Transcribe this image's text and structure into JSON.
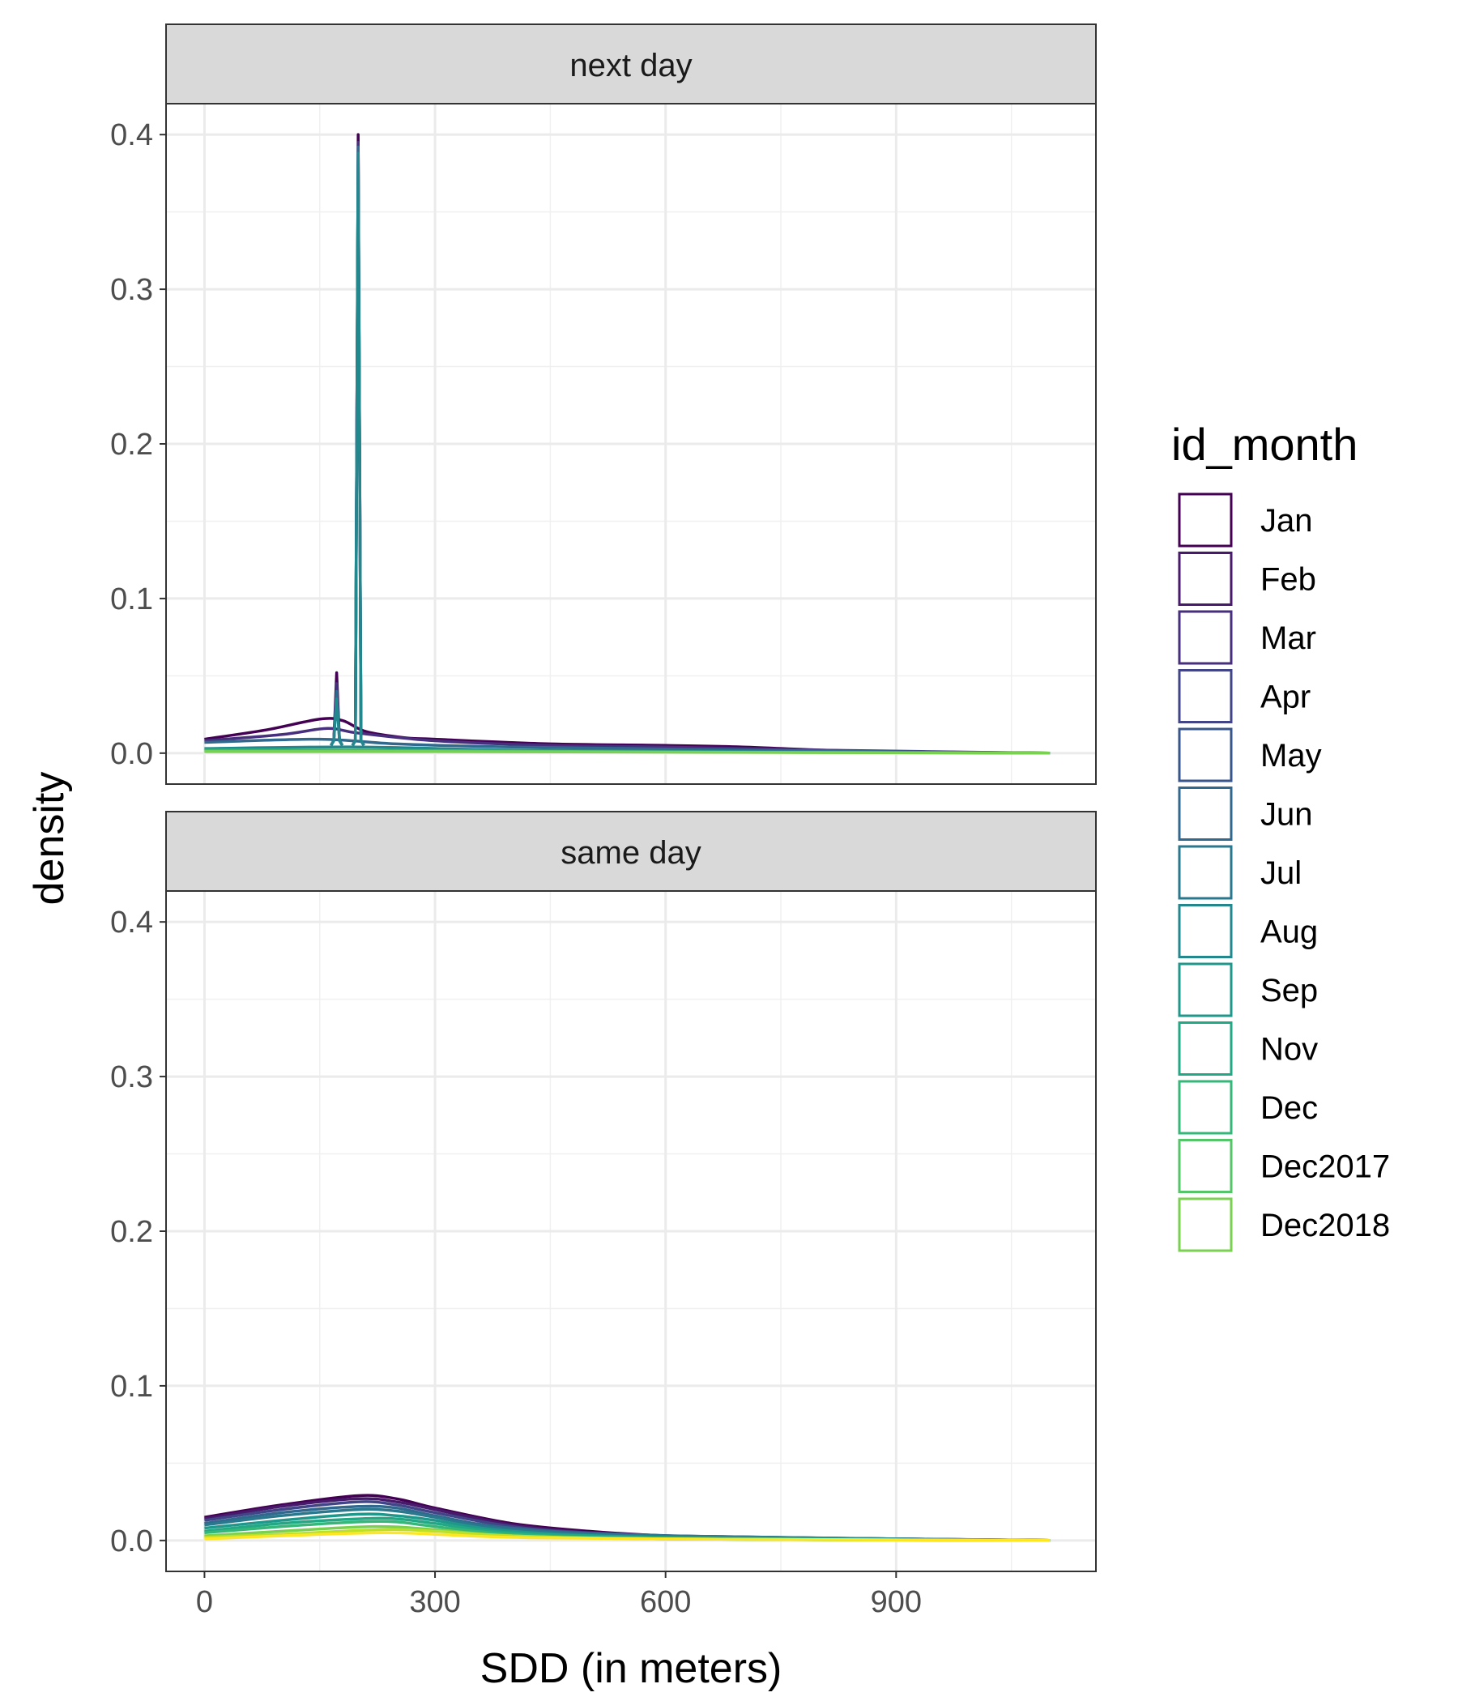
{
  "chart_data": {
    "type": "line",
    "xlabel": "SDD (in meters)",
    "ylabel": "density",
    "xlim": [
      -50,
      1160
    ],
    "ylim": [
      -0.02,
      0.42
    ],
    "x_ticks": [
      0,
      300,
      600,
      900
    ],
    "x_tick_labels": [
      "0",
      "300",
      "600",
      "900"
    ],
    "y_ticks": [
      0.0,
      0.1,
      0.2,
      0.3,
      0.4
    ],
    "y_tick_labels": [
      "0.0",
      "0.1",
      "0.2",
      "0.3",
      "0.4"
    ],
    "grid": true,
    "legend": {
      "title": "id_month",
      "position": "right",
      "entries": [
        "Jan",
        "Feb",
        "Mar",
        "Apr",
        "May",
        "Jun",
        "Jul",
        "Aug",
        "Sep",
        "Nov",
        "Dec",
        "Dec2017",
        "Dec2018"
      ],
      "colors": [
        "#440154",
        "#481a6c",
        "#472f7d",
        "#414487",
        "#39568c",
        "#31688e",
        "#2a788e",
        "#23888e",
        "#1f988b",
        "#22a884",
        "#35b779",
        "#54c568",
        "#7ad151"
      ]
    },
    "panels": [
      {
        "strip": "next day",
        "series": [
          {
            "color": "#440154",
            "values": [
              [
                0,
                0.009
              ],
              [
                80,
                0.015
              ],
              [
                150,
                0.022
              ],
              [
                180,
                0.021
              ],
              [
                210,
                0.014
              ],
              [
                260,
                0.01
              ],
              [
                300,
                0.009
              ],
              [
                450,
                0.006
              ],
              [
                600,
                0.005
              ],
              [
                700,
                0.004
              ],
              [
                800,
                0.002
              ],
              [
                900,
                0.001
              ],
              [
                1100,
                0.0
              ]
            ],
            "spikes": [
              [
                172,
                0.052
              ],
              [
                200,
                0.4
              ]
            ]
          },
          {
            "color": "#472f7d",
            "values": [
              [
                0,
                0.008
              ],
              [
                100,
                0.012
              ],
              [
                160,
                0.016
              ],
              [
                200,
                0.013
              ],
              [
                300,
                0.008
              ],
              [
                450,
                0.005
              ],
              [
                600,
                0.004
              ],
              [
                800,
                0.002
              ],
              [
                1100,
                0.0
              ]
            ],
            "spikes": [
              [
                172,
                0.045
              ],
              [
                200,
                0.395
              ]
            ]
          },
          {
            "color": "#31688e",
            "values": [
              [
                0,
                0.007
              ],
              [
                150,
                0.009
              ],
              [
                250,
                0.006
              ],
              [
                400,
                0.004
              ],
              [
                700,
                0.002
              ],
              [
                1100,
                0.0
              ]
            ],
            "spikes": [
              [
                172,
                0.04
              ],
              [
                200,
                0.392
              ]
            ]
          },
          {
            "color": "#23888e",
            "values": [
              [
                0,
                0.003
              ],
              [
                200,
                0.004
              ],
              [
                400,
                0.002
              ],
              [
                700,
                0.001
              ],
              [
                1100,
                0.0
              ]
            ],
            "spikes": [
              [
                172,
                0.035
              ],
              [
                200,
                0.388
              ]
            ]
          },
          {
            "color": "#35b779",
            "values": [
              [
                0,
                0.002
              ],
              [
                200,
                0.002
              ],
              [
                500,
                0.001
              ],
              [
                1100,
                0.0
              ]
            ],
            "spikes": []
          },
          {
            "color": "#7ad151",
            "values": [
              [
                0,
                0.001
              ],
              [
                300,
                0.001
              ],
              [
                1100,
                0.0
              ]
            ],
            "spikes": []
          }
        ]
      },
      {
        "strip": "same day",
        "series": [
          {
            "color": "#440154",
            "values": [
              [
                0,
                0.015
              ],
              [
                100,
                0.023
              ],
              [
                200,
                0.029
              ],
              [
                250,
                0.027
              ],
              [
                300,
                0.021
              ],
              [
                400,
                0.011
              ],
              [
                500,
                0.006
              ],
              [
                600,
                0.003
              ],
              [
                700,
                0.002
              ],
              [
                900,
                0.001
              ],
              [
                1100,
                0.0
              ]
            ]
          },
          {
            "color": "#481a6c",
            "values": [
              [
                0,
                0.014
              ],
              [
                100,
                0.022
              ],
              [
                200,
                0.027
              ],
              [
                250,
                0.025
              ],
              [
                300,
                0.02
              ],
              [
                400,
                0.01
              ],
              [
                500,
                0.005
              ],
              [
                600,
                0.003
              ],
              [
                900,
                0.001
              ],
              [
                1100,
                0.0
              ]
            ]
          },
          {
            "color": "#414487",
            "values": [
              [
                0,
                0.013
              ],
              [
                100,
                0.02
              ],
              [
                200,
                0.025
              ],
              [
                250,
                0.023
              ],
              [
                300,
                0.018
              ],
              [
                400,
                0.009
              ],
              [
                500,
                0.005
              ],
              [
                700,
                0.002
              ],
              [
                1100,
                0.0
              ]
            ]
          },
          {
            "color": "#31688e",
            "values": [
              [
                0,
                0.011
              ],
              [
                100,
                0.018
              ],
              [
                200,
                0.022
              ],
              [
                250,
                0.021
              ],
              [
                300,
                0.016
              ],
              [
                400,
                0.008
              ],
              [
                600,
                0.003
              ],
              [
                1100,
                0.0
              ]
            ]
          },
          {
            "color": "#2a788e",
            "values": [
              [
                0,
                0.01
              ],
              [
                100,
                0.016
              ],
              [
                200,
                0.02
              ],
              [
                250,
                0.019
              ],
              [
                300,
                0.015
              ],
              [
                400,
                0.007
              ],
              [
                600,
                0.003
              ],
              [
                1100,
                0.0
              ]
            ]
          },
          {
            "color": "#1f988b",
            "values": [
              [
                0,
                0.008
              ],
              [
                100,
                0.013
              ],
              [
                200,
                0.017
              ],
              [
                250,
                0.016
              ],
              [
                300,
                0.013
              ],
              [
                400,
                0.006
              ],
              [
                600,
                0.002
              ],
              [
                1100,
                0.0
              ]
            ]
          },
          {
            "color": "#22a884",
            "values": [
              [
                0,
                0.006
              ],
              [
                100,
                0.011
              ],
              [
                200,
                0.014
              ],
              [
                250,
                0.014
              ],
              [
                300,
                0.011
              ],
              [
                400,
                0.005
              ],
              [
                600,
                0.002
              ],
              [
                1100,
                0.0
              ]
            ]
          },
          {
            "color": "#35b779",
            "values": [
              [
                0,
                0.005
              ],
              [
                100,
                0.009
              ],
              [
                200,
                0.012
              ],
              [
                250,
                0.012
              ],
              [
                300,
                0.009
              ],
              [
                400,
                0.004
              ],
              [
                600,
                0.001
              ],
              [
                1100,
                0.0
              ]
            ]
          },
          {
            "color": "#7ad151",
            "values": [
              [
                0,
                0.003
              ],
              [
                100,
                0.006
              ],
              [
                220,
                0.009
              ],
              [
                300,
                0.007
              ],
              [
                400,
                0.003
              ],
              [
                600,
                0.001
              ],
              [
                1100,
                0.0
              ]
            ]
          },
          {
            "color": "#bddf26",
            "values": [
              [
                0,
                0.002
              ],
              [
                100,
                0.004
              ],
              [
                230,
                0.007
              ],
              [
                300,
                0.006
              ],
              [
                400,
                0.003
              ],
              [
                600,
                0.001
              ],
              [
                1100,
                0.0
              ]
            ]
          },
          {
            "color": "#fde725",
            "values": [
              [
                0,
                0.001
              ],
              [
                100,
                0.003
              ],
              [
                230,
                0.005
              ],
              [
                300,
                0.004
              ],
              [
                400,
                0.002
              ],
              [
                600,
                0.001
              ],
              [
                1100,
                0.0
              ]
            ]
          }
        ]
      }
    ]
  }
}
